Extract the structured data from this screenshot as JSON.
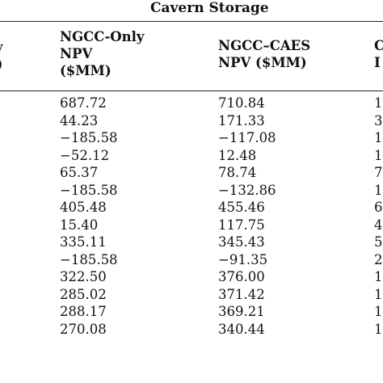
{
  "table": {
    "group_header": "Cavern Storage",
    "columns": {
      "left_partial": [
        "ity",
        "%)"
      ],
      "ngcc_only": [
        "NGCC-Only",
        "NPV",
        "($MM)"
      ],
      "ngcc_caes": [
        "NGCC–CAES",
        "NPV ($MM)"
      ],
      "right_partial": [
        "C",
        "I"
      ]
    },
    "rows": [
      {
        "ngcc_only": "687.72",
        "ngcc_caes": "710.84",
        "right": "1"
      },
      {
        "ngcc_only": "44.23",
        "ngcc_caes": "171.33",
        "right": "3"
      },
      {
        "ngcc_only": "−185.58",
        "ngcc_caes": "−117.08",
        "right": "1"
      },
      {
        "ngcc_only": "−52.12",
        "ngcc_caes": "12.48",
        "right": "1"
      },
      {
        "ngcc_only": "65.37",
        "ngcc_caes": "78.74",
        "right": "7"
      },
      {
        "ngcc_only": "−185.58",
        "ngcc_caes": "−132.86",
        "right": "1"
      },
      {
        "ngcc_only": "405.48",
        "ngcc_caes": "455.46",
        "right": "6"
      },
      {
        "ngcc_only": "15.40",
        "ngcc_caes": "117.75",
        "right": "4"
      },
      {
        "ngcc_only": "335.11",
        "ngcc_caes": "345.43",
        "right": "5"
      },
      {
        "ngcc_only": "−185.58",
        "ngcc_caes": "−91.35",
        "right": "2"
      },
      {
        "ngcc_only": "322.50",
        "ngcc_caes": "376.00",
        "right": "1"
      },
      {
        "ngcc_only": "285.02",
        "ngcc_caes": "371.42",
        "right": "1"
      },
      {
        "ngcc_only": "288.17",
        "ngcc_caes": "369.21",
        "right": "1"
      },
      {
        "ngcc_only": "270.08",
        "ngcc_caes": "340.44",
        "right": "1"
      }
    ]
  }
}
